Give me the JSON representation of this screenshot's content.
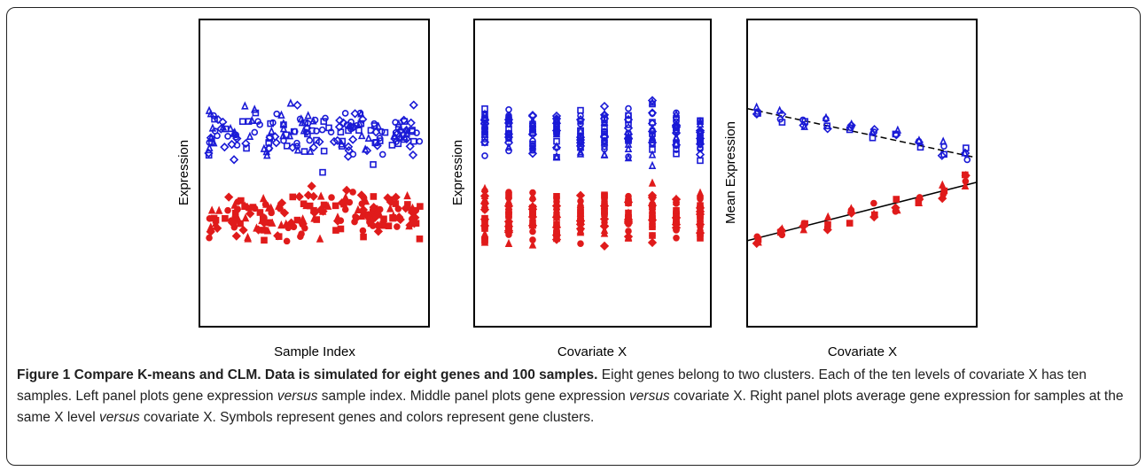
{
  "colors": {
    "cluster_high": "#1a1ad6",
    "cluster_low": "#e01b1b",
    "axis": "#000000"
  },
  "symbols": [
    "circle",
    "triangle",
    "diamond",
    "square",
    "filled-circle",
    "filled-triangle",
    "filled-square",
    "filled-diamond"
  ],
  "chart_data": [
    {
      "type": "scatter",
      "xlabel": "Sample Index",
      "ylabel": "Expression",
      "x_range": [
        1,
        100
      ],
      "series": [
        {
          "color": "blue",
          "y_center": 0.63,
          "y_spread": 0.1,
          "points_per_gene": 100
        },
        {
          "color": "red",
          "y_center": 0.36,
          "y_spread": 0.1,
          "points_per_gene": 100
        }
      ]
    },
    {
      "type": "scatter",
      "xlabel": "Covariate X",
      "ylabel": "Expression",
      "x_levels": [
        1,
        2,
        3,
        4,
        5,
        6,
        7,
        8,
        9,
        10
      ],
      "series": [
        {
          "color": "blue",
          "y_center": 0.63,
          "y_spread": 0.1
        },
        {
          "color": "red",
          "y_center": 0.36,
          "y_spread": 0.1
        }
      ]
    },
    {
      "type": "scatter",
      "xlabel": "Covariate X",
      "ylabel": "Mean Expression",
      "x_levels": [
        1,
        2,
        3,
        4,
        5,
        6,
        7,
        8,
        9,
        10
      ],
      "series": [
        {
          "color": "blue",
          "means": [
            0.7,
            0.69,
            0.67,
            0.66,
            0.65,
            0.63,
            0.62,
            0.6,
            0.58,
            0.56
          ]
        },
        {
          "color": "red",
          "means": [
            0.28,
            0.3,
            0.32,
            0.34,
            0.36,
            0.38,
            0.4,
            0.42,
            0.44,
            0.47
          ]
        }
      ],
      "fit_lines": [
        {
          "color": "black",
          "style": "dashed",
          "start": 0.71,
          "end": 0.55
        },
        {
          "color": "black",
          "style": "solid",
          "start": 0.28,
          "end": 0.47
        }
      ]
    }
  ],
  "caption": {
    "bold": "Figure 1 Compare K-means and CLM. Data is simulated for eight genes and 100 samples.",
    "s1": " Eight genes belong to two clusters. Each of the ten levels of covariate X has ten samples. Left panel plots gene expression ",
    "i1": "versus",
    "s2": " sample index. Middle panel plots gene expression ",
    "i2": "versus",
    "s3": " covariate X. Right panel plots average gene expression for samples at the same X level ",
    "i3": "versus",
    "s4": " covariate X. Symbols represent genes and colors represent gene clusters."
  }
}
